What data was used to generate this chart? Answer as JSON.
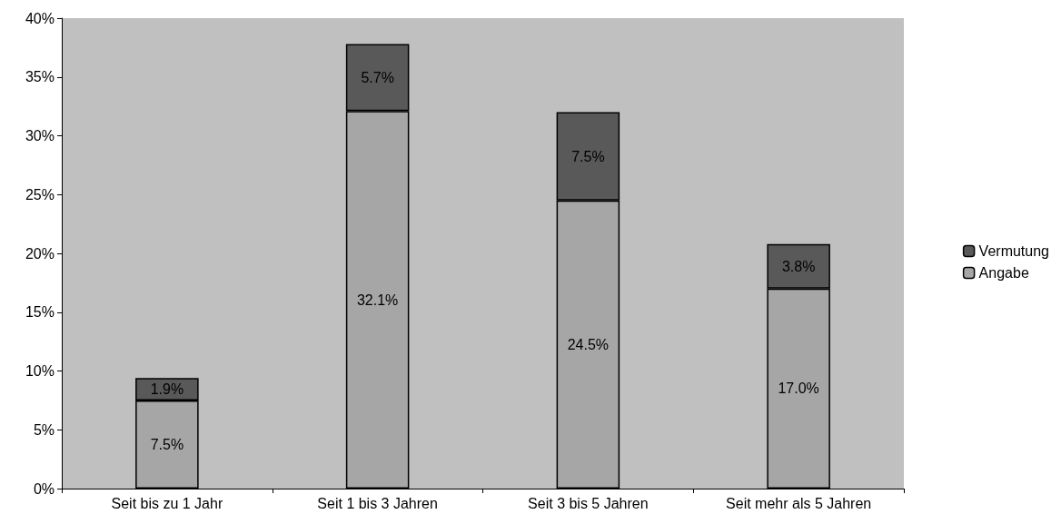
{
  "chart_data": {
    "type": "bar",
    "stacked": true,
    "categories": [
      "Seit bis zu 1 Jahr",
      "Seit 1 bis 3 Jahren",
      "Seit 3 bis 5 Jahren",
      "Seit mehr als 5 Jahren"
    ],
    "series": [
      {
        "name": "Angabe",
        "color": "#a6a6a6",
        "values": [
          7.5,
          32.1,
          24.5,
          17.0
        ],
        "value_labels": [
          "7.5%",
          "32.1%",
          "24.5%",
          "17.0%"
        ]
      },
      {
        "name": "Vermutung",
        "color": "#595959",
        "values": [
          1.9,
          5.7,
          7.5,
          3.8
        ],
        "value_labels": [
          "1.9%",
          "5.7%",
          "7.5%",
          "3.8%"
        ]
      }
    ],
    "ylim": [
      0,
      40
    ],
    "yticks": [
      {
        "value": 0,
        "label": "0%"
      },
      {
        "value": 5,
        "label": "5%"
      },
      {
        "value": 10,
        "label": "10%"
      },
      {
        "value": 15,
        "label": "15%"
      },
      {
        "value": 20,
        "label": "20%"
      },
      {
        "value": 25,
        "label": "25%"
      },
      {
        "value": 30,
        "label": "30%"
      },
      {
        "value": 35,
        "label": "35%"
      },
      {
        "value": 40,
        "label": "40%"
      }
    ],
    "grid": false,
    "legend": "right"
  }
}
